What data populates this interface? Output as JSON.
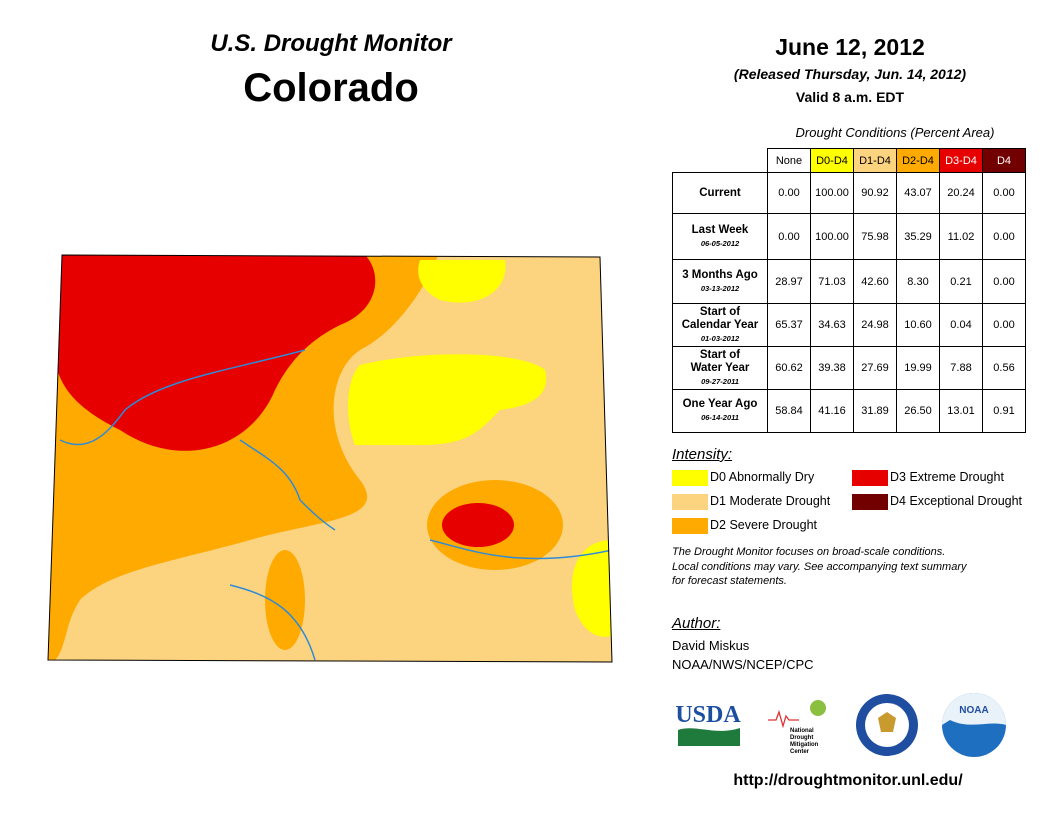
{
  "header": {
    "title": "U.S. Drought Monitor",
    "state": "Colorado",
    "date": "June 12, 2012",
    "released": "(Released Thursday, Jun. 14, 2012)",
    "valid": "Valid 8 a.m. EDT"
  },
  "table": {
    "caption": "Drought Conditions (Percent Area)",
    "columns": [
      {
        "label": "None",
        "color": "#ffffff",
        "text": "#000000"
      },
      {
        "label": "D0-D4",
        "color": "#ffff00",
        "text": "#000000"
      },
      {
        "label": "D1-D4",
        "color": "#fcd37f",
        "text": "#000000"
      },
      {
        "label": "D2-D4",
        "color": "#ffaa00",
        "text": "#000000"
      },
      {
        "label": "D3-D4",
        "color": "#e60000",
        "text": "#ffffff"
      },
      {
        "label": "D4",
        "color": "#730000",
        "text": "#ffffff"
      }
    ],
    "rows": [
      {
        "label": [
          "Current"
        ],
        "values": [
          "0.00",
          "100.00",
          "90.92",
          "43.07",
          "20.24",
          "0.00"
        ]
      },
      {
        "label": [
          "Last Week"
        ],
        "date": "06-05-2012",
        "values": [
          "0.00",
          "100.00",
          "75.98",
          "35.29",
          "11.02",
          "0.00"
        ]
      },
      {
        "label": [
          "3 Months Ago"
        ],
        "date": "03-13-2012",
        "values": [
          "28.97",
          "71.03",
          "42.60",
          "8.30",
          "0.21",
          "0.00"
        ]
      },
      {
        "label": [
          "Start of",
          "Calendar Year"
        ],
        "date": "01-03-2012",
        "values": [
          "65.37",
          "34.63",
          "24.98",
          "10.60",
          "0.04",
          "0.00"
        ]
      },
      {
        "label": [
          "Start of",
          "Water Year"
        ],
        "date": "09-27-2011",
        "values": [
          "60.62",
          "39.38",
          "27.69",
          "19.99",
          "7.88",
          "0.56"
        ]
      },
      {
        "label": [
          "One Year Ago"
        ],
        "date": "06-14-2011",
        "values": [
          "58.84",
          "41.16",
          "31.89",
          "26.50",
          "13.01",
          "0.91"
        ]
      }
    ]
  },
  "legend": {
    "title": "Intensity:",
    "items": [
      {
        "label": "D0 Abnormally Dry",
        "color": "#ffff00"
      },
      {
        "label": "D1 Moderate Drought",
        "color": "#fcd37f"
      },
      {
        "label": "D2 Severe Drought",
        "color": "#ffaa00"
      },
      {
        "label": "D3 Extreme Drought",
        "color": "#e60000"
      },
      {
        "label": "D4 Exceptional Drought",
        "color": "#730000"
      }
    ]
  },
  "note": [
    "The Drought Monitor focuses on broad-scale conditions.",
    "Local conditions may vary. See accompanying text summary",
    "for forecast statements."
  ],
  "author": {
    "title": "Author:",
    "name": "David Miskus",
    "org": "NOAA/NWS/NCEP/CPC"
  },
  "logos": {
    "usda": "USDA",
    "ndmc": [
      "National",
      "Drought",
      "Mitigation",
      "Center"
    ],
    "noaa": "NOAA"
  },
  "url": "http://droughtmonitor.unl.edu/"
}
